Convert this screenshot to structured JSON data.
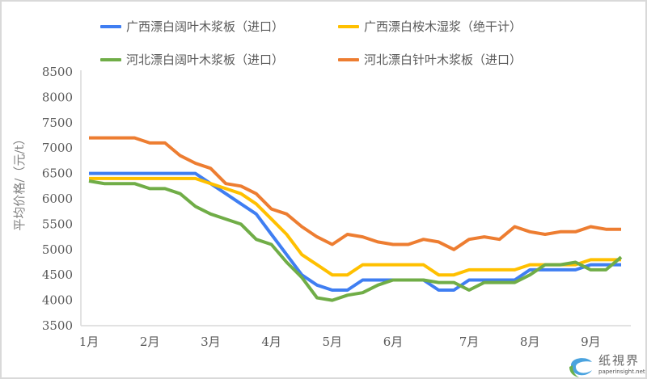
{
  "chart_data": {
    "type": "line",
    "title": "",
    "xlabel": "",
    "ylabel": "平均价格/（元/t）",
    "ylim": [
      3500,
      8500
    ],
    "yticks": [
      3500,
      4000,
      4500,
      5000,
      5500,
      6000,
      6500,
      7000,
      7500,
      8000,
      8500
    ],
    "point_count": 36,
    "x_tick_labels": [
      {
        "label": "1月",
        "index": 0
      },
      {
        "label": "2月",
        "index": 4
      },
      {
        "label": "3月",
        "index": 8
      },
      {
        "label": "4月",
        "index": 12
      },
      {
        "label": "5月",
        "index": 16
      },
      {
        "label": "6月",
        "index": 20
      },
      {
        "label": "7月",
        "index": 25
      },
      {
        "label": "8月",
        "index": 29
      },
      {
        "label": "9月",
        "index": 33
      }
    ],
    "legend_position": "top",
    "series": [
      {
        "name": "广西漂白阔叶木浆板（进口）",
        "color": "#3f7ef2",
        "values": [
          6500,
          6500,
          6500,
          6500,
          6500,
          6500,
          6500,
          6500,
          6300,
          6100,
          5900,
          5700,
          5300,
          4900,
          4500,
          4300,
          4200,
          4200,
          4400,
          4400,
          4400,
          4400,
          4400,
          4200,
          4200,
          4400,
          4400,
          4400,
          4400,
          4600,
          4600,
          4600,
          4600,
          4700,
          4700,
          4700
        ]
      },
      {
        "name": "广西漂白桉木湿浆（绝干计）",
        "color": "#ffc000",
        "values": [
          6400,
          6400,
          6400,
          6400,
          6400,
          6400,
          6400,
          6400,
          6300,
          6200,
          6100,
          5900,
          5600,
          5300,
          4900,
          4700,
          4500,
          4500,
          4700,
          4700,
          4700,
          4700,
          4700,
          4500,
          4500,
          4600,
          4600,
          4600,
          4600,
          4700,
          4700,
          4700,
          4700,
          4800,
          4800,
          4800
        ]
      },
      {
        "name": "河北漂白阔叶木浆板（进口）",
        "color": "#70ad47",
        "values": [
          6350,
          6300,
          6300,
          6300,
          6200,
          6200,
          6100,
          5850,
          5700,
          5600,
          5500,
          5200,
          5100,
          4750,
          4450,
          4050,
          4000,
          4100,
          4150,
          4300,
          4400,
          4400,
          4400,
          4350,
          4350,
          4200,
          4350,
          4350,
          4350,
          4500,
          4700,
          4700,
          4750,
          4600,
          4600,
          4850
        ]
      },
      {
        "name": "河北漂白针叶木浆板（进口）",
        "color": "#ed7d31",
        "values": [
          7200,
          7200,
          7200,
          7200,
          7100,
          7100,
          6850,
          6700,
          6600,
          6300,
          6250,
          6100,
          5800,
          5700,
          5450,
          5250,
          5100,
          5300,
          5250,
          5150,
          5100,
          5100,
          5200,
          5150,
          5000,
          5200,
          5250,
          5200,
          5450,
          5350,
          5300,
          5350,
          5350,
          5450,
          5400,
          5400
        ]
      }
    ]
  },
  "watermark": {
    "name": "纸視界",
    "url": "paperinsight.net"
  }
}
